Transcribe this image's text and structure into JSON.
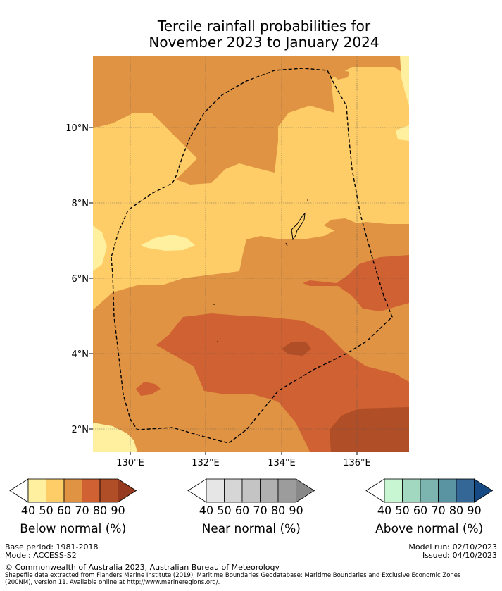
{
  "title": {
    "line1": "Tercile rainfall probabilities for",
    "line2": "November 2023 to January 2024"
  },
  "map": {
    "lat_ticks": [
      "10°N",
      "8°N",
      "6°N",
      "4°N",
      "2°N"
    ],
    "lon_ticks": [
      "130°E",
      "132°E",
      "134°E",
      "136°E"
    ],
    "extent": {
      "lon": [
        129,
        137.4
      ],
      "lat": [
        1.4,
        11.9
      ]
    },
    "colors": {
      "below_40": "#fff0a0",
      "below_50": "#fecd67",
      "below_60": "#e09443",
      "below_70": "#cf6132",
      "below_80": "#b04e27"
    },
    "boundary": "Exclusive Economic Zone (dashed)"
  },
  "colorbars": [
    {
      "title": "Below normal (%)",
      "labels": [
        "40",
        "50",
        "60",
        "70",
        "80",
        "90"
      ],
      "colors": [
        "#ffffff",
        "#fff0a0",
        "#fecd67",
        "#e09443",
        "#cf6132",
        "#b04e27",
        "#963a1f"
      ]
    },
    {
      "title": "Near normal (%)",
      "labels": [
        "40",
        "50",
        "60",
        "70",
        "80",
        "90"
      ],
      "colors": [
        "#ffffff",
        "#e6e6e6",
        "#d6d6d6",
        "#c4c4c4",
        "#b0b0b0",
        "#9c9c9c",
        "#888888"
      ]
    },
    {
      "title": "Above normal (%)",
      "labels": [
        "40",
        "50",
        "60",
        "70",
        "80",
        "90"
      ],
      "colors": [
        "#ffffff",
        "#c9f6d2",
        "#a2d8bf",
        "#7cb5af",
        "#5a94a3",
        "#356796",
        "#154a85"
      ]
    }
  ],
  "footer": {
    "base_period": "Base period: 1981-2018",
    "model": "Model: ACCESS-S2",
    "model_run": "Model run: 02/10/2023",
    "issued": "Issued: 04/10/2023",
    "copyright": "© Commonwealth of Australia 2023, Australian Bureau of Meteorology",
    "shapefile_line1": "Shapefile data extracted from Flanders Marine Institute (2019), Maritime Boundaries Geodatabase: Maritime Boundaries and Exclusive Economic Zones",
    "shapefile_line2": "(200NM), version 11. Available online at http://www.marineregions.org/."
  }
}
